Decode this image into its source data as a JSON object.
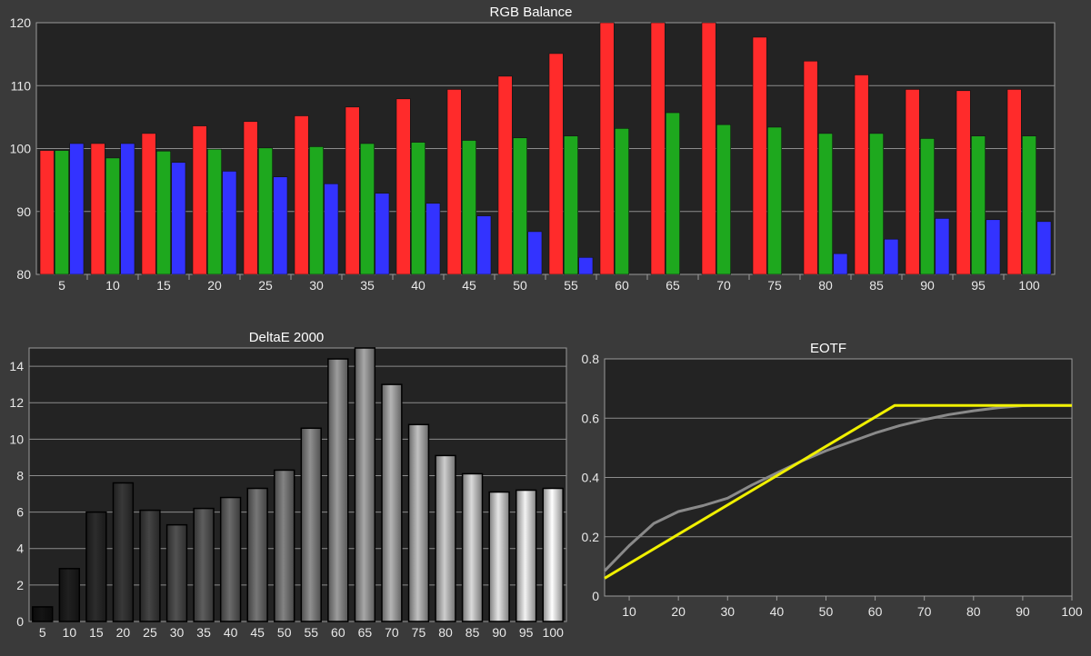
{
  "chart_data": [
    {
      "type": "bar",
      "title": "RGB Balance",
      "categories": [
        "5",
        "10",
        "15",
        "20",
        "25",
        "30",
        "35",
        "40",
        "45",
        "50",
        "55",
        "60",
        "65",
        "70",
        "75",
        "80",
        "85",
        "90",
        "95",
        "100"
      ],
      "ylim": [
        80,
        120
      ],
      "yticks": [
        80,
        90,
        100,
        110,
        120
      ],
      "grid": true,
      "series": [
        {
          "color": "#ff2b2b",
          "values": [
            99.7,
            100.8,
            102.4,
            103.6,
            104.3,
            105.2,
            106.6,
            107.9,
            109.4,
            111.5,
            115.1,
            120.5,
            120.5,
            120.5,
            117.7,
            113.9,
            111.7,
            109.4,
            109.2,
            109.4
          ]
        },
        {
          "color": "#1ea81e",
          "values": [
            99.7,
            98.5,
            99.6,
            99.9,
            100.1,
            100.3,
            100.8,
            101.0,
            101.3,
            101.7,
            102.0,
            103.2,
            105.7,
            103.8,
            103.4,
            102.4,
            102.4,
            101.6,
            102.0,
            102.0
          ]
        },
        {
          "color": "#3333ff",
          "values": [
            100.8,
            100.8,
            97.8,
            96.4,
            95.5,
            94.4,
            92.9,
            91.3,
            89.3,
            86.8,
            82.7,
            80.0,
            80.0,
            80.0,
            80.0,
            83.3,
            85.6,
            88.9,
            88.7,
            88.4
          ]
        }
      ]
    },
    {
      "type": "bar",
      "title": "DeltaE 2000",
      "categories": [
        "5",
        "10",
        "15",
        "20",
        "25",
        "30",
        "35",
        "40",
        "45",
        "50",
        "55",
        "60",
        "65",
        "70",
        "75",
        "80",
        "85",
        "90",
        "95",
        "100"
      ],
      "values": [
        0.8,
        2.9,
        6.0,
        7.6,
        6.1,
        5.3,
        6.2,
        6.8,
        7.3,
        8.3,
        10.6,
        14.4,
        15.2,
        13.0,
        10.8,
        9.1,
        8.1,
        7.1,
        7.2,
        7.3
      ],
      "ylim": [
        0,
        15
      ],
      "yticks": [
        0,
        2,
        4,
        6,
        8,
        10,
        12,
        14
      ],
      "grid": true
    },
    {
      "type": "line",
      "title": "EOTF",
      "xlim": [
        5,
        100
      ],
      "ylim": [
        0,
        0.8
      ],
      "xticks": [
        10,
        20,
        30,
        40,
        50,
        60,
        70,
        80,
        90,
        100
      ],
      "yticks": [
        0,
        0.2,
        0.4,
        0.6,
        0.8
      ],
      "grid": true,
      "series": [
        {
          "color": "#8a8a8a",
          "x": [
            5,
            10,
            15,
            20,
            25,
            30,
            35,
            40,
            45,
            50,
            55,
            60,
            65,
            70,
            75,
            80,
            85,
            90,
            95,
            100
          ],
          "y": [
            0.085,
            0.17,
            0.245,
            0.285,
            0.305,
            0.33,
            0.375,
            0.415,
            0.455,
            0.49,
            0.52,
            0.55,
            0.575,
            0.595,
            0.612,
            0.625,
            0.635,
            0.642,
            0.643,
            0.643
          ]
        },
        {
          "color": "#f0f000",
          "x": [
            5,
            64,
            100
          ],
          "y": [
            0.06,
            0.643,
            0.643
          ]
        }
      ]
    }
  ]
}
